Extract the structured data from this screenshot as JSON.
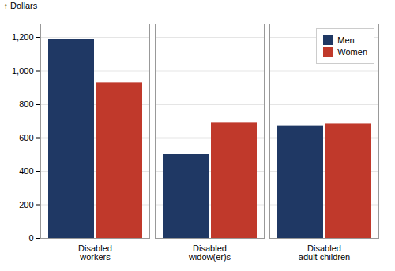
{
  "chart_data": {
    "type": "bar",
    "categories": [
      "Disabled\nworkers",
      "Disabled\nwidow(er)s",
      "Disabled\nadult children"
    ],
    "series": [
      {
        "name": "Men",
        "color": "#1f3864",
        "values": [
          1190,
          500,
          670
        ]
      },
      {
        "name": "Women",
        "color": "#c0392b",
        "values": [
          930,
          690,
          685
        ]
      }
    ],
    "ylabel": "Dollars",
    "ylim": [
      0,
      1280
    ],
    "yticks": [
      0,
      200,
      400,
      600,
      800,
      {
        "value": 1000,
        "label": "1,000"
      },
      {
        "value": 1200,
        "label": "1,200"
      }
    ],
    "grid": true,
    "legend": "upper right"
  }
}
